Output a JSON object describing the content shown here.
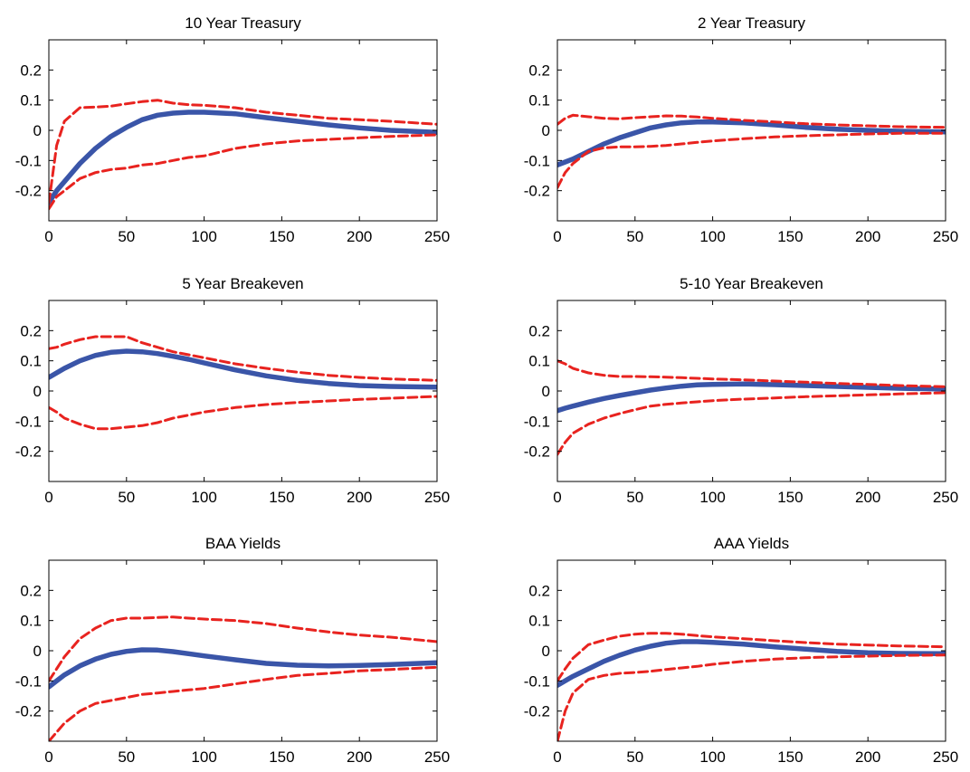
{
  "chart_data": [
    {
      "type": "line",
      "title": "10 Year Treasury",
      "xlim": [
        0,
        250
      ],
      "ylim": [
        -0.3,
        0.3
      ],
      "xticks": [
        0,
        50,
        100,
        150,
        200,
        250
      ],
      "yticks": [
        -0.2,
        -0.1,
        0,
        0.1,
        0.2
      ],
      "ytick_labels": [
        "-0.2",
        "-0.1",
        "0",
        "0.1",
        "0.2"
      ],
      "x": [
        0,
        5,
        10,
        20,
        30,
        40,
        50,
        60,
        70,
        80,
        90,
        100,
        120,
        140,
        160,
        180,
        200,
        220,
        250
      ],
      "series": [
        {
          "role": "estimate",
          "color": "#3a55a8",
          "values": [
            -0.24,
            -0.2,
            -0.17,
            -0.11,
            -0.06,
            -0.02,
            0.01,
            0.035,
            0.05,
            0.057,
            0.06,
            0.06,
            0.055,
            0.042,
            0.03,
            0.018,
            0.008,
            0.0,
            -0.007
          ]
        },
        {
          "role": "upper-band",
          "color": "#e8231f",
          "values": [
            -0.24,
            -0.05,
            0.03,
            0.075,
            0.077,
            0.08,
            0.088,
            0.095,
            0.1,
            0.09,
            0.085,
            0.083,
            0.075,
            0.06,
            0.05,
            0.04,
            0.035,
            0.03,
            0.02
          ]
        },
        {
          "role": "lower-band",
          "color": "#e8231f",
          "values": [
            -0.26,
            -0.22,
            -0.2,
            -0.16,
            -0.14,
            -0.13,
            -0.125,
            -0.115,
            -0.11,
            -0.1,
            -0.09,
            -0.085,
            -0.06,
            -0.045,
            -0.035,
            -0.03,
            -0.025,
            -0.02,
            -0.015
          ]
        }
      ]
    },
    {
      "type": "line",
      "title": "2 Year Treasury",
      "xlim": [
        0,
        250
      ],
      "ylim": [
        -0.3,
        0.3
      ],
      "xticks": [
        0,
        50,
        100,
        150,
        200,
        250
      ],
      "yticks": [
        -0.2,
        -0.1,
        0,
        0.1,
        0.2
      ],
      "ytick_labels": [
        "-0.2",
        "-0.1",
        "0",
        "0.1",
        "0.2"
      ],
      "x": [
        0,
        5,
        10,
        20,
        30,
        40,
        50,
        60,
        70,
        80,
        90,
        100,
        120,
        140,
        160,
        180,
        200,
        220,
        250
      ],
      "series": [
        {
          "role": "estimate",
          "color": "#3a55a8",
          "values": [
            -0.115,
            -0.105,
            -0.095,
            -0.07,
            -0.045,
            -0.025,
            -0.008,
            0.008,
            0.018,
            0.025,
            0.028,
            0.028,
            0.025,
            0.018,
            0.01,
            0.004,
            0.0,
            -0.003,
            -0.005
          ]
        },
        {
          "role": "upper-band",
          "color": "#e8231f",
          "values": [
            0.02,
            0.04,
            0.05,
            0.045,
            0.04,
            0.038,
            0.042,
            0.045,
            0.048,
            0.047,
            0.044,
            0.04,
            0.033,
            0.028,
            0.022,
            0.018,
            0.015,
            0.012,
            0.01
          ]
        },
        {
          "role": "lower-band",
          "color": "#e8231f",
          "values": [
            -0.19,
            -0.14,
            -0.11,
            -0.07,
            -0.058,
            -0.055,
            -0.055,
            -0.053,
            -0.05,
            -0.045,
            -0.04,
            -0.035,
            -0.028,
            -0.022,
            -0.018,
            -0.015,
            -0.012,
            -0.01,
            -0.01
          ]
        }
      ]
    },
    {
      "type": "line",
      "title": "5 Year Breakeven",
      "xlim": [
        0,
        250
      ],
      "ylim": [
        -0.3,
        0.3
      ],
      "xticks": [
        0,
        50,
        100,
        150,
        200,
        250
      ],
      "yticks": [
        -0.2,
        -0.1,
        0,
        0.1,
        0.2
      ],
      "ytick_labels": [
        "-0.2",
        "-0.1",
        "0",
        "0.1",
        "0.2"
      ],
      "x": [
        0,
        5,
        10,
        20,
        30,
        40,
        50,
        60,
        70,
        80,
        90,
        100,
        120,
        140,
        160,
        180,
        200,
        220,
        250
      ],
      "series": [
        {
          "role": "estimate",
          "color": "#3a55a8",
          "values": [
            0.045,
            0.06,
            0.075,
            0.1,
            0.118,
            0.128,
            0.132,
            0.13,
            0.124,
            0.115,
            0.105,
            0.093,
            0.07,
            0.05,
            0.035,
            0.025,
            0.018,
            0.015,
            0.013
          ]
        },
        {
          "role": "upper-band",
          "color": "#e8231f",
          "values": [
            0.14,
            0.145,
            0.155,
            0.17,
            0.18,
            0.18,
            0.18,
            0.16,
            0.145,
            0.13,
            0.12,
            0.11,
            0.09,
            0.075,
            0.062,
            0.052,
            0.045,
            0.04,
            0.035
          ]
        },
        {
          "role": "lower-band",
          "color": "#e8231f",
          "values": [
            -0.055,
            -0.07,
            -0.09,
            -0.11,
            -0.125,
            -0.125,
            -0.12,
            -0.115,
            -0.105,
            -0.09,
            -0.08,
            -0.07,
            -0.055,
            -0.045,
            -0.038,
            -0.033,
            -0.028,
            -0.024,
            -0.018
          ]
        }
      ]
    },
    {
      "type": "line",
      "title": "5-10 Year Breakeven",
      "xlim": [
        0,
        250
      ],
      "ylim": [
        -0.3,
        0.3
      ],
      "xticks": [
        0,
        50,
        100,
        150,
        200,
        250
      ],
      "yticks": [
        -0.2,
        -0.1,
        0,
        0.1,
        0.2
      ],
      "ytick_labels": [
        "-0.2",
        "-0.1",
        "0",
        "0.1",
        "0.2"
      ],
      "x": [
        0,
        5,
        10,
        20,
        30,
        40,
        50,
        60,
        70,
        80,
        90,
        100,
        120,
        140,
        160,
        180,
        200,
        220,
        250
      ],
      "series": [
        {
          "role": "estimate",
          "color": "#3a55a8",
          "values": [
            -0.065,
            -0.057,
            -0.05,
            -0.037,
            -0.025,
            -0.015,
            -0.006,
            0.003,
            0.01,
            0.016,
            0.02,
            0.022,
            0.023,
            0.021,
            0.018,
            0.015,
            0.012,
            0.009,
            0.006
          ]
        },
        {
          "role": "upper-band",
          "color": "#e8231f",
          "values": [
            0.1,
            0.09,
            0.075,
            0.06,
            0.052,
            0.048,
            0.048,
            0.047,
            0.046,
            0.044,
            0.042,
            0.04,
            0.037,
            0.033,
            0.029,
            0.025,
            0.022,
            0.018,
            0.014
          ]
        },
        {
          "role": "lower-band",
          "color": "#e8231f",
          "values": [
            -0.21,
            -0.17,
            -0.14,
            -0.11,
            -0.09,
            -0.075,
            -0.062,
            -0.05,
            -0.044,
            -0.04,
            -0.036,
            -0.032,
            -0.027,
            -0.023,
            -0.019,
            -0.016,
            -0.013,
            -0.01,
            -0.006
          ]
        }
      ]
    },
    {
      "type": "line",
      "title": "BAA Yields",
      "xlim": [
        0,
        250
      ],
      "ylim": [
        -0.3,
        0.3
      ],
      "xticks": [
        0,
        50,
        100,
        150,
        200,
        250
      ],
      "yticks": [
        -0.2,
        -0.1,
        0,
        0.1,
        0.2
      ],
      "ytick_labels": [
        "-0.2",
        "-0.1",
        "0",
        "0.1",
        "0.2"
      ],
      "x": [
        0,
        5,
        10,
        20,
        30,
        40,
        50,
        60,
        70,
        80,
        90,
        100,
        120,
        140,
        160,
        180,
        200,
        220,
        250
      ],
      "series": [
        {
          "role": "estimate",
          "color": "#3a55a8",
          "values": [
            -0.12,
            -0.1,
            -0.08,
            -0.05,
            -0.028,
            -0.012,
            -0.002,
            0.003,
            0.002,
            -0.003,
            -0.01,
            -0.017,
            -0.03,
            -0.042,
            -0.048,
            -0.05,
            -0.049,
            -0.046,
            -0.04
          ]
        },
        {
          "role": "upper-band",
          "color": "#e8231f",
          "values": [
            -0.1,
            -0.06,
            -0.02,
            0.04,
            0.075,
            0.1,
            0.108,
            0.108,
            0.11,
            0.112,
            0.108,
            0.105,
            0.1,
            0.09,
            0.075,
            0.062,
            0.052,
            0.045,
            0.03
          ]
        },
        {
          "role": "lower-band",
          "color": "#e8231f",
          "values": [
            -0.3,
            -0.27,
            -0.24,
            -0.2,
            -0.175,
            -0.165,
            -0.155,
            -0.145,
            -0.14,
            -0.135,
            -0.13,
            -0.125,
            -0.11,
            -0.095,
            -0.082,
            -0.075,
            -0.067,
            -0.062,
            -0.055
          ]
        }
      ]
    },
    {
      "type": "line",
      "title": "AAA Yields",
      "xlim": [
        0,
        250
      ],
      "ylim": [
        -0.3,
        0.3
      ],
      "xticks": [
        0,
        50,
        100,
        150,
        200,
        250
      ],
      "yticks": [
        -0.2,
        -0.1,
        0,
        0.1,
        0.2
      ],
      "ytick_labels": [
        "-0.2",
        "-0.1",
        "0",
        "0.1",
        "0.2"
      ],
      "x": [
        0,
        5,
        10,
        20,
        30,
        40,
        50,
        60,
        70,
        80,
        90,
        100,
        120,
        140,
        160,
        180,
        200,
        220,
        250
      ],
      "series": [
        {
          "role": "estimate",
          "color": "#3a55a8",
          "values": [
            -0.115,
            -0.1,
            -0.085,
            -0.06,
            -0.035,
            -0.015,
            0.002,
            0.015,
            0.025,
            0.03,
            0.03,
            0.028,
            0.022,
            0.013,
            0.005,
            -0.002,
            -0.007,
            -0.009,
            -0.01
          ]
        },
        {
          "role": "upper-band",
          "color": "#e8231f",
          "values": [
            -0.1,
            -0.06,
            -0.025,
            0.02,
            0.035,
            0.048,
            0.055,
            0.058,
            0.058,
            0.055,
            0.05,
            0.046,
            0.04,
            0.033,
            0.027,
            0.022,
            0.019,
            0.016,
            0.013
          ]
        },
        {
          "role": "lower-band",
          "color": "#e8231f",
          "values": [
            -0.3,
            -0.2,
            -0.14,
            -0.095,
            -0.082,
            -0.075,
            -0.072,
            -0.068,
            -0.062,
            -0.057,
            -0.052,
            -0.045,
            -0.035,
            -0.028,
            -0.023,
            -0.02,
            -0.018,
            -0.016,
            -0.014
          ]
        }
      ]
    }
  ]
}
